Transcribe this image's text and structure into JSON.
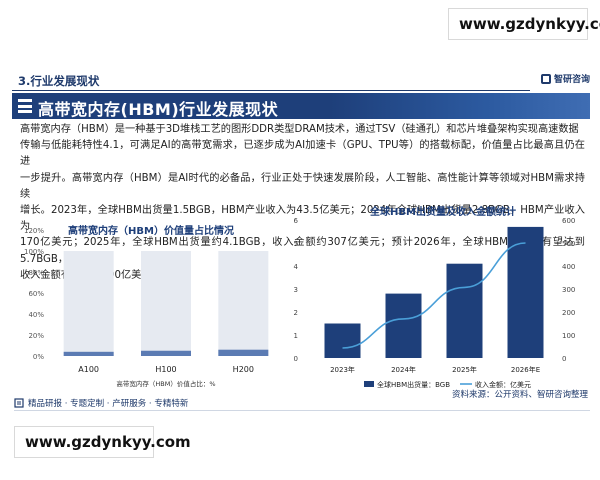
{
  "watermark": {
    "top": "www.gzdynkyy.com",
    "bottom": "www.gzdynkyy.com"
  },
  "section": {
    "label": "3.行业发展现状",
    "brand": "智研咨询"
  },
  "banner": {
    "title": "高带宽内存(HBM)行业发展现状"
  },
  "body_lines": [
    "高带宽内存（HBM）是一种基于3D堆栈工艺的图形DDR类型DRAM技术，通过TSV（硅通孔）和芯片堆叠架构实现高速数据",
    "传输与低能耗特性4.1，可满足AI的高带宽需求，已逐步成为AI加速卡（GPU、TPU等）的搭载标配，价值量占比最高且仍在进",
    "一步提升。高带宽内存（HBM）是AI时代的必备品，行业正处于快速发展阶段，人工智能、高性能计算等领域对HBM需求持续",
    "增长。2023年，全球HBM出货量1.5BGB，HBM产业收入为43.5亿美元；2024年全球HBM出货量2.8BGB，HBM产业收入为",
    "170亿美元；2025年，全球HBM出货量约4.1BGB，收入金额约307亿美元；预计2026年，全球HBM出货量有望达到5.7BGB，",
    "收入金额有望达到500亿美元。"
  ],
  "chart_data": [
    {
      "type": "bar",
      "title": "高带宽内存（HBM）价值量占比情况",
      "categories": [
        "A100",
        "H100",
        "H200"
      ],
      "series": [
        {
          "name": "高带宽内存（HBM）价值占比：%",
          "values": [
            4,
            5,
            6
          ]
        }
      ],
      "background_values": [
        100,
        100,
        100
      ],
      "yticks": [
        "0%",
        "20%",
        "40%",
        "60%",
        "80%",
        "100%",
        "120%"
      ],
      "ylim": [
        0,
        120
      ],
      "legend": "高带宽内存（HBM）价值占比：%",
      "colors": {
        "bar": "#5b7bb3",
        "background": "#e6eaf1"
      }
    },
    {
      "type": "bar+line",
      "title": "全球HBM出货量及收入金额统计",
      "categories": [
        "2023年",
        "2024年",
        "2025年",
        "2026年E"
      ],
      "series": [
        {
          "name": "全球HBM出货量：BGB",
          "type": "bar",
          "axis": "left",
          "values": [
            1.5,
            2.8,
            4.1,
            5.7
          ]
        },
        {
          "name": "收入金额：亿美元",
          "type": "line",
          "axis": "right",
          "values": [
            43.5,
            170,
            307,
            500
          ]
        }
      ],
      "ylim_left": [
        0,
        6
      ],
      "ylim_right": [
        0,
        600
      ],
      "yticks_left": [
        "0",
        "1",
        "2",
        "3",
        "4",
        "5",
        "6"
      ],
      "yticks_right": [
        "0",
        "100",
        "200",
        "300",
        "400",
        "500",
        "600"
      ],
      "legend_position": "bottom",
      "colors": {
        "bar": "#1e3f7a",
        "line": "#4a9fd8"
      }
    }
  ],
  "source": "资料来源：公开资料、智研咨询整理",
  "footer": {
    "text": "精品研报 · 专题定制 · 产研服务 · 专精特新"
  }
}
